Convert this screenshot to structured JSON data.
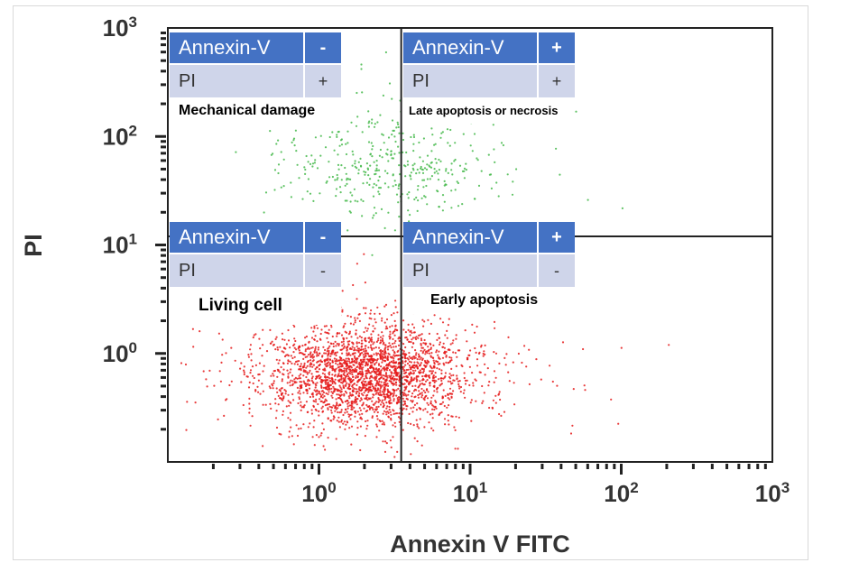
{
  "chart_data": {
    "type": "scatter",
    "xlabel": "Annexin V FITC",
    "ylabel": "PI",
    "x_scale": "log",
    "y_scale": "log",
    "xlim": [
      0.1,
      1000
    ],
    "ylim": [
      0.1,
      1000
    ],
    "x_ticks": [
      {
        "base": "10",
        "exp": "0",
        "value": 1
      },
      {
        "base": "10",
        "exp": "1",
        "value": 10
      },
      {
        "base": "10",
        "exp": "2",
        "value": 100
      },
      {
        "base": "10",
        "exp": "3",
        "value": 1000
      }
    ],
    "y_ticks": [
      {
        "base": "10",
        "exp": "0",
        "value": 1
      },
      {
        "base": "10",
        "exp": "1",
        "value": 10
      },
      {
        "base": "10",
        "exp": "2",
        "value": 100
      },
      {
        "base": "10",
        "exp": "3",
        "value": 1000
      }
    ],
    "gate": {
      "x": 3.5,
      "y": 12
    },
    "populations": [
      {
        "name": "upper",
        "color": "#44b94a",
        "center": [
          2.8,
          55
        ],
        "spread_decades": [
          0.35,
          0.25
        ],
        "count": 420
      },
      {
        "name": "lower",
        "color": "#e51a1a",
        "center": [
          2.1,
          0.65
        ],
        "spread_decades": [
          0.32,
          0.22
        ],
        "count": 2600
      }
    ],
    "grid": false,
    "quadrants": [
      {
        "annexin_label": "Annexin-V",
        "annexin_sign": "-",
        "pi_label": "PI",
        "pi_sign": "+",
        "label": "Mechanical damage"
      },
      {
        "annexin_label": "Annexin-V",
        "annexin_sign": "+",
        "pi_label": "PI",
        "pi_sign": "+",
        "label": "Late apoptosis or necrosis"
      },
      {
        "annexin_label": "Annexin-V",
        "annexin_sign": "-",
        "pi_label": "PI",
        "pi_sign": "-",
        "label": "Living cell"
      },
      {
        "annexin_label": "Annexin-V",
        "annexin_sign": "+",
        "pi_label": "PI",
        "pi_sign": "-",
        "label": "Early apoptosis"
      }
    ]
  }
}
